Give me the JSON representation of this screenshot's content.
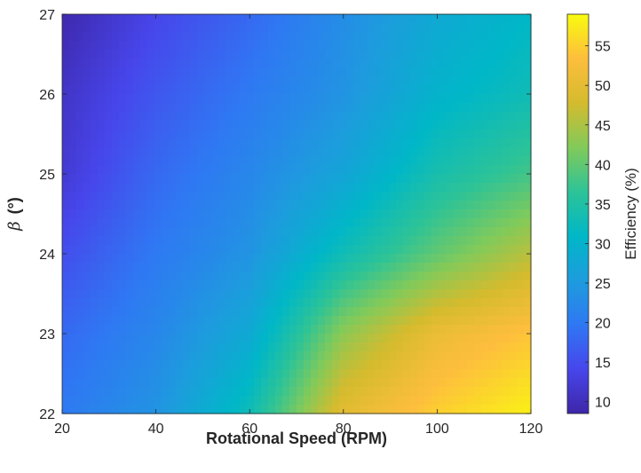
{
  "chart_data": {
    "type": "heatmap",
    "title": "",
    "xlabel": "Rotational Speed (RPM)",
    "ylabel_symbol": "β",
    "ylabel_unit": "(°)",
    "colorbar_label": "Efficiency (%)",
    "xlim": [
      20,
      120
    ],
    "ylim": [
      22,
      27
    ],
    "clim": [
      8.5,
      59
    ],
    "colormap": "parula",
    "colormap_stops": [
      "#3e26a8",
      "#4746eb",
      "#2f78f3",
      "#1d9cdd",
      "#00b7c7",
      "#2dc397",
      "#82ca5a",
      "#d4bb2e",
      "#fdbe3d",
      "#f9fb0e"
    ],
    "x_ticks": [
      "20",
      "40",
      "60",
      "80",
      "100",
      "120"
    ],
    "y_ticks": [
      "22",
      "23",
      "24",
      "25",
      "26",
      "27"
    ],
    "colorbar_ticks": [
      "10",
      "15",
      "20",
      "25",
      "30",
      "35",
      "40",
      "45",
      "50",
      "55"
    ],
    "grid": false,
    "x": [
      20,
      40,
      60,
      80,
      100,
      120
    ],
    "y": [
      22,
      23,
      24,
      25,
      26,
      27
    ],
    "z": [
      [
        20,
        24,
        33,
        50,
        55,
        58
      ],
      [
        18,
        22,
        28,
        43,
        51,
        54
      ],
      [
        15,
        20,
        24,
        33,
        40,
        46
      ],
      [
        12,
        18,
        22,
        27,
        34,
        38
      ],
      [
        11,
        16,
        20,
        24,
        30,
        33
      ],
      [
        9,
        14,
        18,
        23,
        28,
        31
      ]
    ]
  }
}
